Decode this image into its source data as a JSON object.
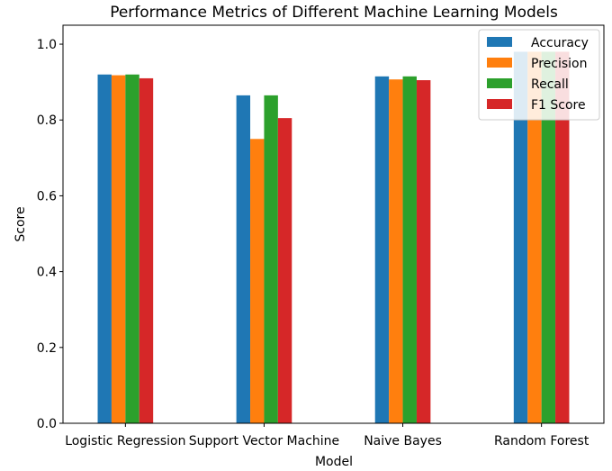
{
  "chart_data": {
    "type": "bar",
    "title": "Performance Metrics of Different Machine Learning Models",
    "xlabel": "Model",
    "ylabel": "Score",
    "ylim": [
      0,
      1.05
    ],
    "yticks": [
      "0.0",
      "0.2",
      "0.4",
      "0.6",
      "0.8",
      "1.0"
    ],
    "categories": [
      "Logistic Regression",
      "Support Vector Machine",
      "Naive Bayes",
      "Random Forest"
    ],
    "series": [
      {
        "name": "Accuracy",
        "color": "#1f77b4",
        "values": [
          0.92,
          0.865,
          0.915,
          0.98
        ]
      },
      {
        "name": "Precision",
        "color": "#ff7f0e",
        "values": [
          0.918,
          0.75,
          0.907,
          0.98
        ]
      },
      {
        "name": "Recall",
        "color": "#2ca02c",
        "values": [
          0.92,
          0.865,
          0.915,
          0.98
        ]
      },
      {
        "name": "F1 Score",
        "color": "#d62728",
        "values": [
          0.91,
          0.805,
          0.905,
          0.98
        ]
      }
    ],
    "legend_position": "top-right",
    "grid": false
  }
}
